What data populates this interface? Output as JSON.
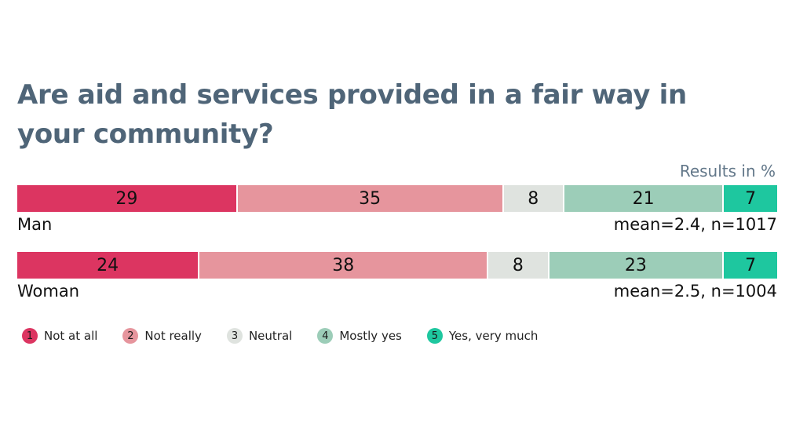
{
  "chart_data": {
    "type": "bar",
    "orientation": "horizontal-stacked",
    "title": "Are aid and services provided in a fair way in your community?",
    "unit_label": "Results in %",
    "categories": [
      "Not at all",
      "Not really",
      "Neutral",
      "Mostly yes",
      "Yes, very much"
    ],
    "category_numbers": [
      "1",
      "2",
      "3",
      "4",
      "5"
    ],
    "colors": [
      "#dc3561",
      "#e6959d",
      "#dfe3df",
      "#9ccdb8",
      "#1ec79f"
    ],
    "rows": [
      {
        "name": "Man",
        "values": [
          29,
          35,
          8,
          21,
          7
        ],
        "stat": "mean=2.4, n=1017"
      },
      {
        "name": "Woman",
        "values": [
          24,
          38,
          8,
          23,
          7
        ],
        "stat": "mean=2.5, n=1004"
      }
    ]
  }
}
